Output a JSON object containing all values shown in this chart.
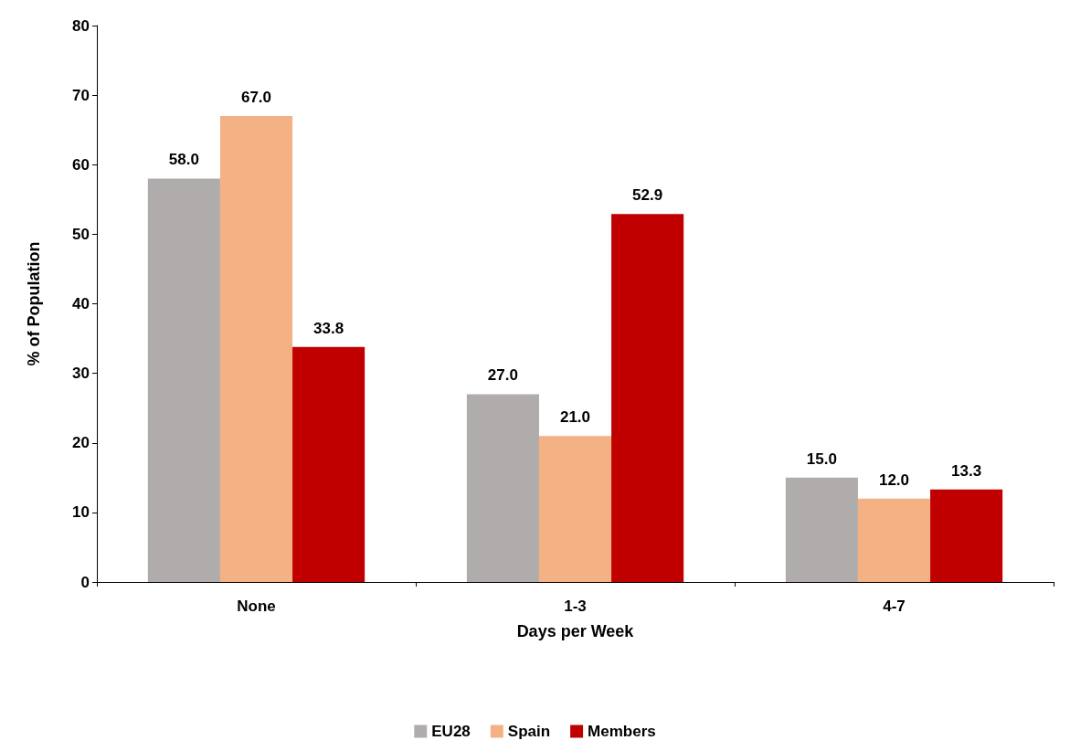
{
  "chart_data": {
    "type": "bar",
    "xlabel": "Days per Week",
    "ylabel": "% of Population",
    "categories": [
      "None",
      "1-3",
      "4-7"
    ],
    "series": [
      {
        "name": "EU28",
        "color": "#b0acab",
        "values": [
          58.0,
          27.0,
          15.0
        ],
        "value_labels": [
          "58.0",
          "27.0",
          "15.0"
        ]
      },
      {
        "name": "Spain",
        "color": "#f4b183",
        "values": [
          67.0,
          21.0,
          12.0
        ],
        "value_labels": [
          "67.0",
          "21.0",
          "12.0"
        ]
      },
      {
        "name": "Members",
        "color": "#c00000",
        "values": [
          33.8,
          52.9,
          13.3
        ],
        "value_labels": [
          "33.8",
          "52.9",
          "13.3"
        ]
      }
    ],
    "ylim": [
      0,
      80
    ],
    "yticks": [
      0,
      10,
      20,
      30,
      40,
      50,
      60,
      70,
      80
    ],
    "grid": false,
    "legend": "bottom"
  }
}
